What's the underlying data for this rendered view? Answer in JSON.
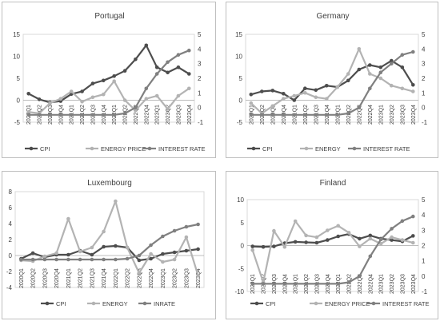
{
  "chart_data": [
    {
      "type": "line",
      "title": "Portugal",
      "categories": [
        "2020Q1",
        "2020Q2",
        "2020Q3",
        "2020Q4",
        "2021Q1",
        "2021Q2",
        "2021Q3",
        "2021Q4",
        "2022Q1",
        "2022Q2",
        "2022Q3",
        "2022Q4",
        "2023Q1",
        "2023Q2",
        "2023Q3",
        "2023Q4"
      ],
      "ylim_left": [
        -5,
        15
      ],
      "yticks_left": [
        -5,
        0,
        5,
        10,
        15
      ],
      "ylim_right": [
        -1,
        5
      ],
      "yticks_right": [
        -1,
        0,
        1,
        2,
        3,
        4,
        5
      ],
      "series": [
        {
          "name": "CPI",
          "axis": "left",
          "color": "#4d4d4d",
          "values": [
            1.5,
            0.2,
            -0.5,
            -0.2,
            1.4,
            2.0,
            3.8,
            4.5,
            5.5,
            6.7,
            9.3,
            12.5,
            7.5,
            6.3,
            7.5,
            6.0
          ]
        },
        {
          "name": "ENERGY PRICE",
          "axis": "right",
          "color": "#b3b3b3",
          "values": [
            -0.3,
            -0.4,
            0.3,
            0.6,
            1.1,
            0.4,
            0.7,
            0.9,
            1.8,
            0.5,
            -0.2,
            0.6,
            0.8,
            -0.1,
            0.8,
            1.3
          ]
        },
        {
          "name": "INTEREST RATE",
          "axis": "right",
          "color": "#808080",
          "values": [
            -0.5,
            -0.5,
            -0.5,
            -0.5,
            -0.5,
            -0.5,
            -0.5,
            -0.5,
            -0.5,
            -0.4,
            0.0,
            1.3,
            2.3,
            3.1,
            3.6,
            3.9
          ]
        }
      ]
    },
    {
      "type": "line",
      "title": "Germany",
      "categories": [
        "2020Q1",
        "2020Q2",
        "2020Q3",
        "2020Q4",
        "2021Q1",
        "2021Q2",
        "2021Q3",
        "2021Q4",
        "2022Q1",
        "2022Q2",
        "2022Q3",
        "2022Q4",
        "2023Q1",
        "2023Q2",
        "2023Q3",
        "2023Q4"
      ],
      "ylim_left": [
        -5,
        15
      ],
      "yticks_left": [
        -5,
        0,
        5,
        10,
        15
      ],
      "ylim_right": [
        -1,
        5
      ],
      "yticks_right": [
        -1,
        0,
        1,
        2,
        3,
        4,
        5
      ],
      "series": [
        {
          "name": "CPI",
          "axis": "left",
          "color": "#4d4d4d",
          "values": [
            1.3,
            2.0,
            2.2,
            1.5,
            0.0,
            2.7,
            2.3,
            3.3,
            3.0,
            4.5,
            7.0,
            8.0,
            7.5,
            9.0,
            7.5,
            3.5
          ]
        },
        {
          "name": "ENERGY",
          "axis": "right",
          "color": "#b3b3b3",
          "values": [
            0.3,
            -0.4,
            0.1,
            0.6,
            0.8,
            1.0,
            0.7,
            0.6,
            1.4,
            2.3,
            4.0,
            2.3,
            2.0,
            1.5,
            1.3,
            1.1
          ]
        },
        {
          "name": "INTEREST RATE",
          "axis": "right",
          "color": "#808080",
          "values": [
            -0.5,
            -0.5,
            -0.5,
            -0.5,
            -0.5,
            -0.5,
            -0.5,
            -0.5,
            -0.5,
            -0.4,
            0.0,
            1.3,
            2.4,
            3.0,
            3.6,
            3.8
          ]
        }
      ]
    },
    {
      "type": "line",
      "title": "Luxembourg",
      "categories": [
        "2020Q1",
        "2020Q2",
        "2020Q3",
        "2020Q4",
        "2021Q1",
        "2021Q2",
        "2021Q3",
        "2021Q4",
        "2022Q1",
        "2022Q2",
        "2022Q3",
        "2022Q4",
        "2023Q1",
        "2023Q2",
        "2023Q3",
        "2023Q4"
      ],
      "ylim_left": [
        -4,
        8
      ],
      "yticks_left": [
        -4,
        -2,
        0,
        2,
        4,
        6,
        8
      ],
      "series": [
        {
          "name": "CPI",
          "axis": "left",
          "color": "#4d4d4d",
          "values": [
            -0.4,
            0.3,
            -0.2,
            0.1,
            0.1,
            0.6,
            0.1,
            1.1,
            1.2,
            1.0,
            -0.6,
            -0.4,
            0.2,
            0.4,
            0.6,
            0.8
          ]
        },
        {
          "name": "ENERGY",
          "axis": "left",
          "color": "#b3b3b3",
          "values": [
            -0.6,
            -0.7,
            -0.1,
            0.3,
            4.6,
            0.5,
            1.0,
            3.0,
            6.8,
            1.0,
            -2.2,
            0.2,
            -0.8,
            -0.5,
            2.3,
            -2.5
          ]
        },
        {
          "name": "INRATE",
          "axis": "left",
          "color": "#808080",
          "values": [
            -0.5,
            -0.5,
            -0.5,
            -0.5,
            -0.5,
            -0.5,
            -0.5,
            -0.5,
            -0.5,
            -0.4,
            0.0,
            1.3,
            2.4,
            3.1,
            3.6,
            3.9
          ]
        }
      ]
    },
    {
      "type": "line",
      "title": "Finland",
      "categories": [
        "2020Q1",
        "2020Q2",
        "2020Q3",
        "2020Q4",
        "2021Q1",
        "2021Q2",
        "2021Q3",
        "2021Q4",
        "2022Q1",
        "2022Q2",
        "2022Q3",
        "2022Q4",
        "2023Q1",
        "2023Q2",
        "2023Q3",
        "2023Q4"
      ],
      "ylim_left": [
        -10,
        10
      ],
      "yticks_left": [
        -10,
        -5,
        0,
        5,
        10
      ],
      "ylim_right": [
        -1,
        5
      ],
      "yticks_right": [
        -1,
        0,
        1,
        2,
        3,
        4,
        5
      ],
      "series": [
        {
          "name": "CPI",
          "axis": "left",
          "color": "#4d4d4d",
          "values": [
            -0.2,
            -0.3,
            -0.2,
            0.5,
            0.8,
            0.7,
            0.6,
            1.2,
            2.0,
            2.5,
            1.5,
            2.2,
            1.5,
            1.2,
            0.9,
            2.1
          ]
        },
        {
          "name": "ENERGY PRICE",
          "axis": "left",
          "color": "#b3b3b3",
          "values": [
            -1.0,
            -8.0,
            3.2,
            -0.3,
            5.3,
            2.2,
            1.8,
            3.3,
            4.3,
            2.8,
            -0.2,
            1.5,
            0.4,
            1.8,
            1.2,
            0.6
          ]
        },
        {
          "name": "INTEREST RATE",
          "axis": "right",
          "color": "#808080",
          "values": [
            -0.5,
            -0.5,
            -0.5,
            -0.5,
            -0.5,
            -0.5,
            -0.5,
            -0.5,
            -0.5,
            -0.4,
            0.0,
            1.3,
            2.4,
            3.1,
            3.6,
            3.9
          ]
        }
      ]
    }
  ]
}
